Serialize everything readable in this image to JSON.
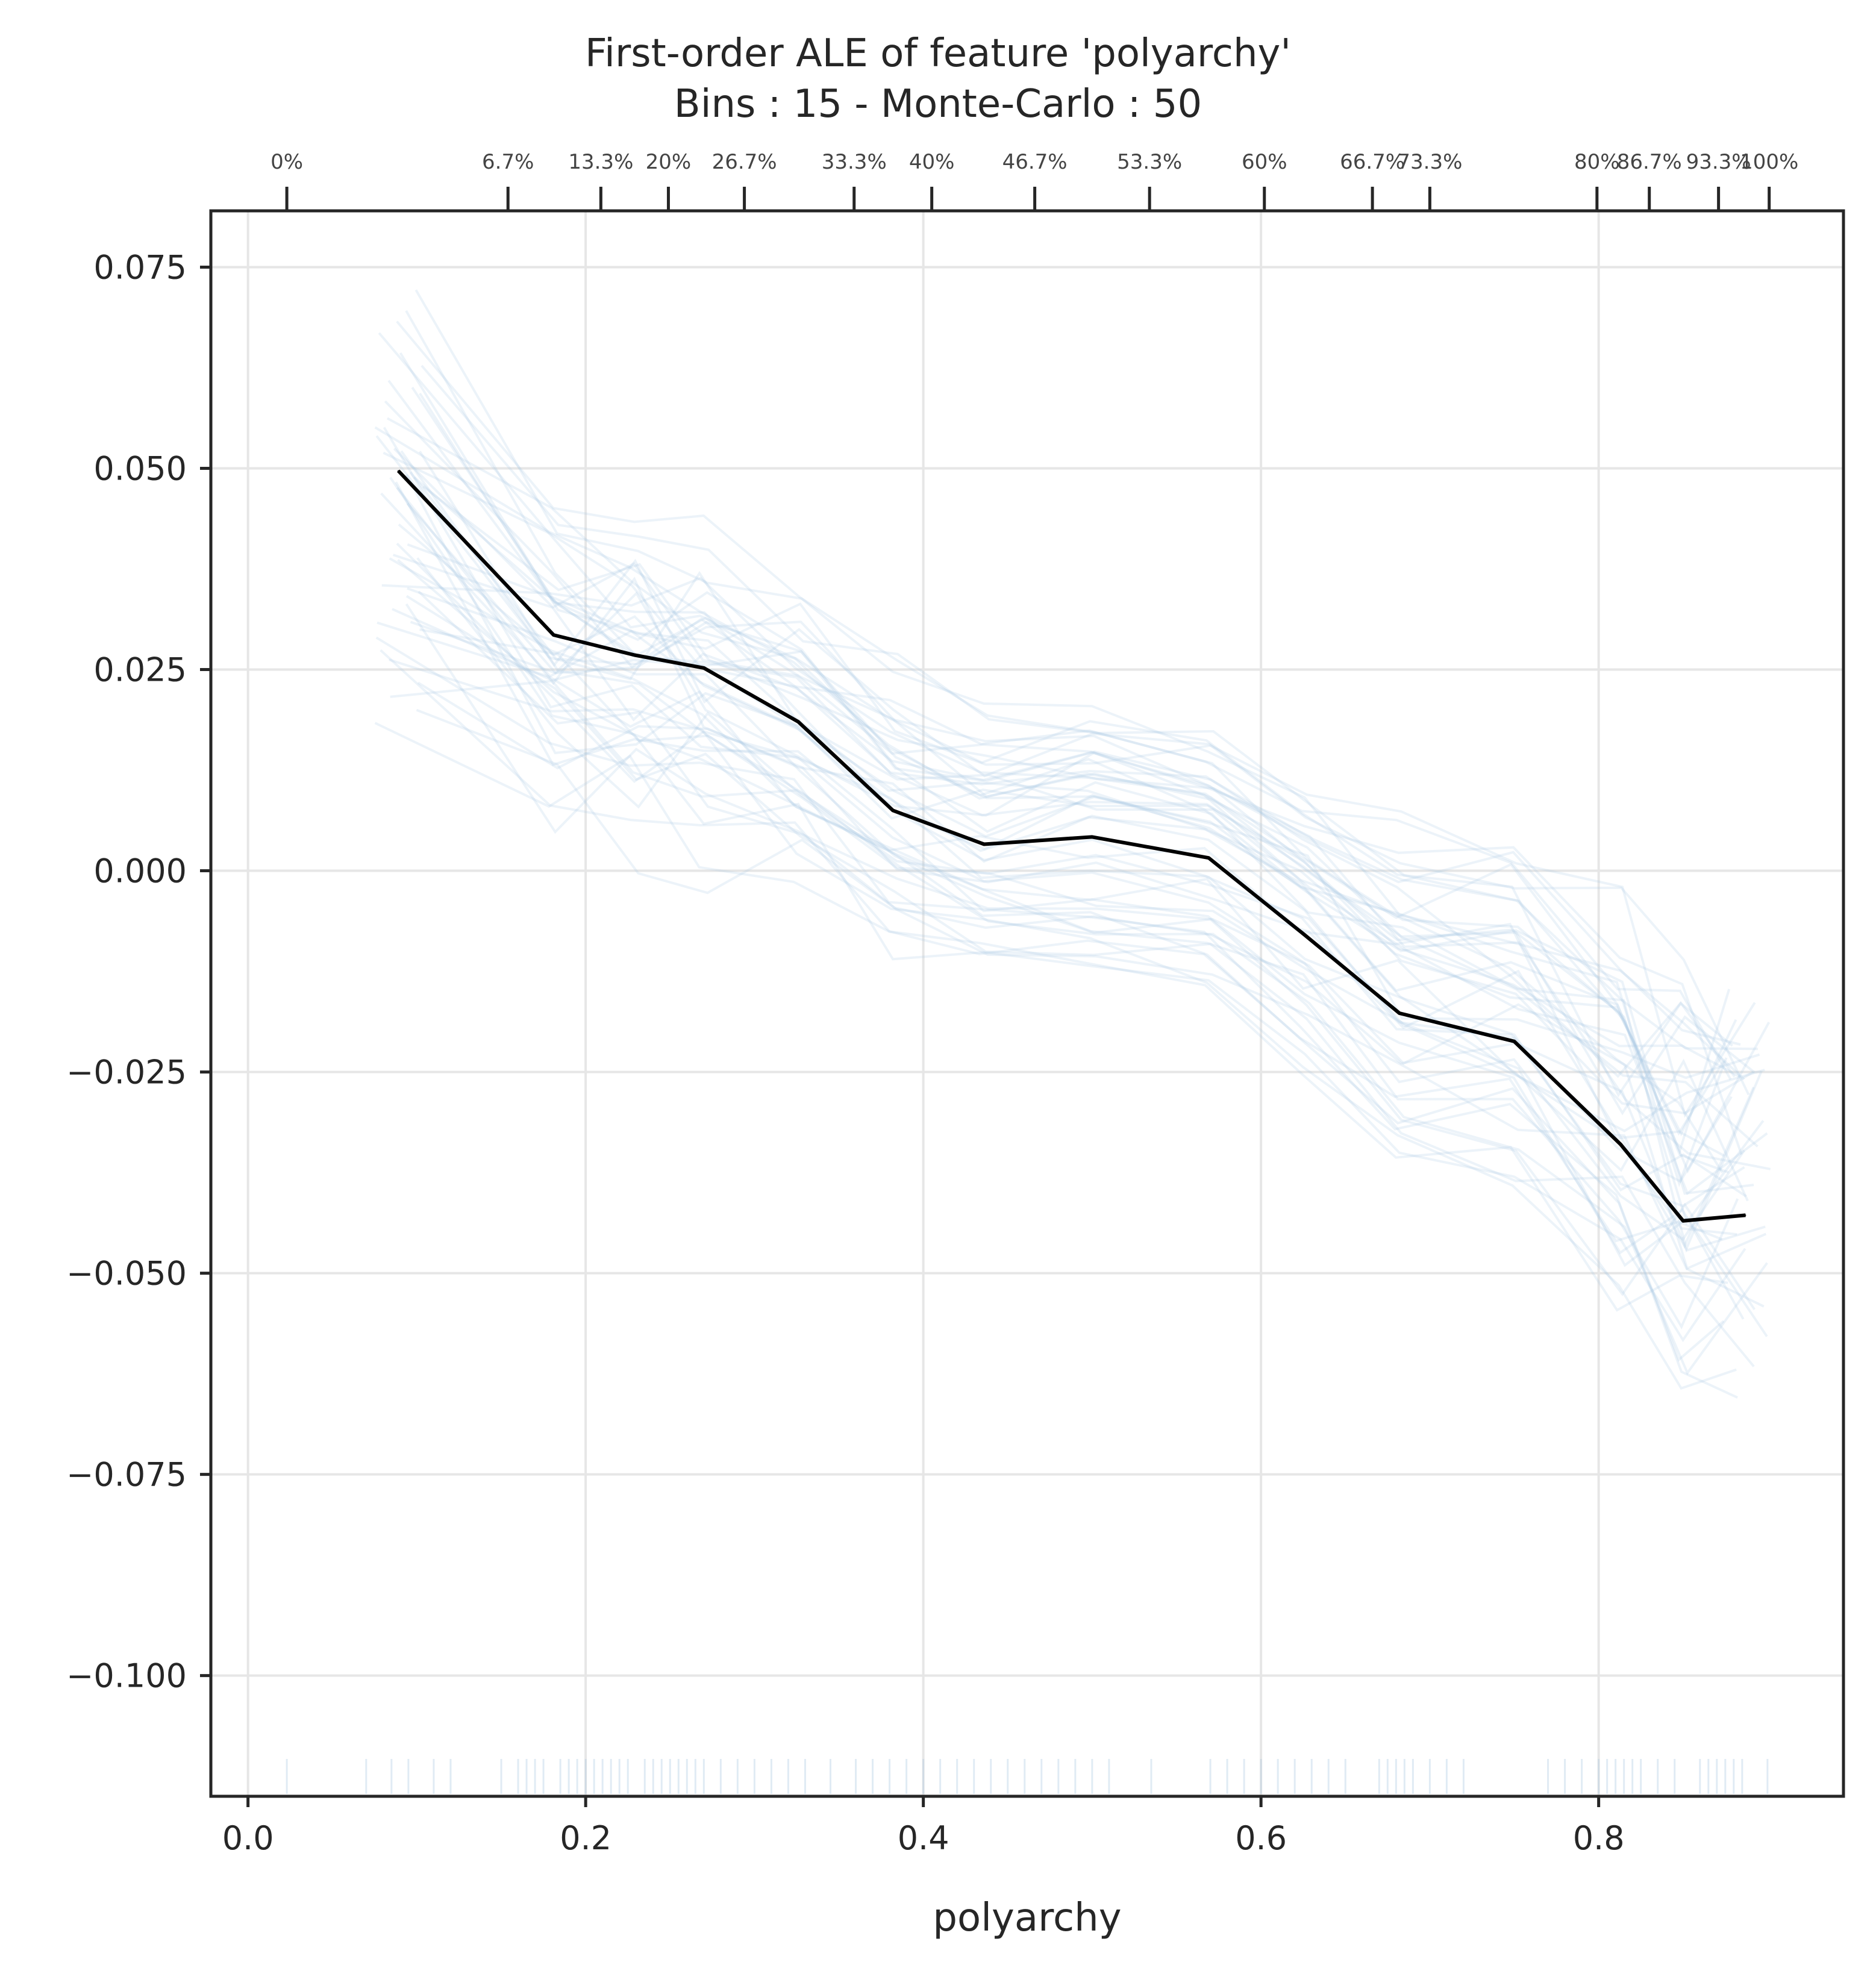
{
  "chart_data": {
    "type": "line",
    "title_lines": [
      "First-order ALE of feature 'polyarchy'",
      "Bins : 15 - Monte-Carlo : 50"
    ],
    "xlabel": "polyarchy",
    "ylabel": "",
    "xlim": [
      -0.022,
      0.945
    ],
    "ylim": [
      -0.115,
      0.082
    ],
    "x_ticks": [
      {
        "value": 0.0,
        "label": "0.0"
      },
      {
        "value": 0.2,
        "label": "0.2"
      },
      {
        "value": 0.4,
        "label": "0.4"
      },
      {
        "value": 0.6,
        "label": "0.6"
      },
      {
        "value": 0.8,
        "label": "0.8"
      }
    ],
    "y_ticks": [
      {
        "value": 0.075,
        "label": "0.075"
      },
      {
        "value": 0.05,
        "label": "0.050"
      },
      {
        "value": 0.025,
        "label": "0.025"
      },
      {
        "value": 0.0,
        "label": "0.000"
      },
      {
        "value": -0.025,
        "label": "−0.025"
      },
      {
        "value": -0.05,
        "label": "−0.050"
      },
      {
        "value": -0.075,
        "label": "−0.075"
      },
      {
        "value": -0.1,
        "label": "−0.100"
      }
    ],
    "quantile_ticks": [
      {
        "value": 0.023,
        "label": "0%"
      },
      {
        "value": 0.154,
        "label": "6.7%"
      },
      {
        "value": 0.209,
        "label": "13.3%"
      },
      {
        "value": 0.249,
        "label": "20%"
      },
      {
        "value": 0.294,
        "label": "26.7%"
      },
      {
        "value": 0.359,
        "label": "33.3%"
      },
      {
        "value": 0.405,
        "label": "40%"
      },
      {
        "value": 0.466,
        "label": "46.7%"
      },
      {
        "value": 0.534,
        "label": "53.3%"
      },
      {
        "value": 0.602,
        "label": "60%"
      },
      {
        "value": 0.666,
        "label": "66.7%"
      },
      {
        "value": 0.7,
        "label": "73.3%"
      },
      {
        "value": 0.799,
        "label": "80%"
      },
      {
        "value": 0.83,
        "label": "86.7%"
      },
      {
        "value": 0.871,
        "label": "93.3%"
      },
      {
        "value": 0.901,
        "label": "100%"
      }
    ],
    "series": [
      {
        "x": [
          0.089,
          0.181,
          0.229,
          0.27,
          0.326,
          0.382,
          0.436,
          0.5,
          0.569,
          0.626,
          0.682,
          0.75,
          0.813,
          0.85,
          0.887
        ],
        "values": [
          0.0497,
          0.0293,
          0.0268,
          0.0252,
          0.0185,
          0.0075,
          0.0033,
          0.0042,
          0.0016,
          -0.008,
          -0.0177,
          -0.0212,
          -0.034,
          -0.0435,
          -0.0428
        ]
      }
    ],
    "monte_carlo": {
      "count": 50,
      "color": "#a9c8e2"
    },
    "rug_x": [
      0.023,
      0.07,
      0.085,
      0.095,
      0.11,
      0.12,
      0.15,
      0.16,
      0.165,
      0.17,
      0.175,
      0.185,
      0.19,
      0.195,
      0.2,
      0.205,
      0.21,
      0.215,
      0.22,
      0.225,
      0.235,
      0.24,
      0.245,
      0.25,
      0.255,
      0.26,
      0.265,
      0.27,
      0.28,
      0.29,
      0.3,
      0.31,
      0.32,
      0.33,
      0.345,
      0.36,
      0.37,
      0.38,
      0.39,
      0.4,
      0.41,
      0.42,
      0.43,
      0.44,
      0.45,
      0.46,
      0.47,
      0.48,
      0.49,
      0.5,
      0.51,
      0.535,
      0.57,
      0.58,
      0.59,
      0.6,
      0.61,
      0.62,
      0.63,
      0.64,
      0.65,
      0.67,
      0.675,
      0.68,
      0.685,
      0.69,
      0.7,
      0.71,
      0.72,
      0.77,
      0.78,
      0.79,
      0.8,
      0.805,
      0.81,
      0.815,
      0.82,
      0.825,
      0.835,
      0.845,
      0.86,
      0.865,
      0.87,
      0.875,
      0.88,
      0.885,
      0.9
    ],
    "grid": true
  }
}
